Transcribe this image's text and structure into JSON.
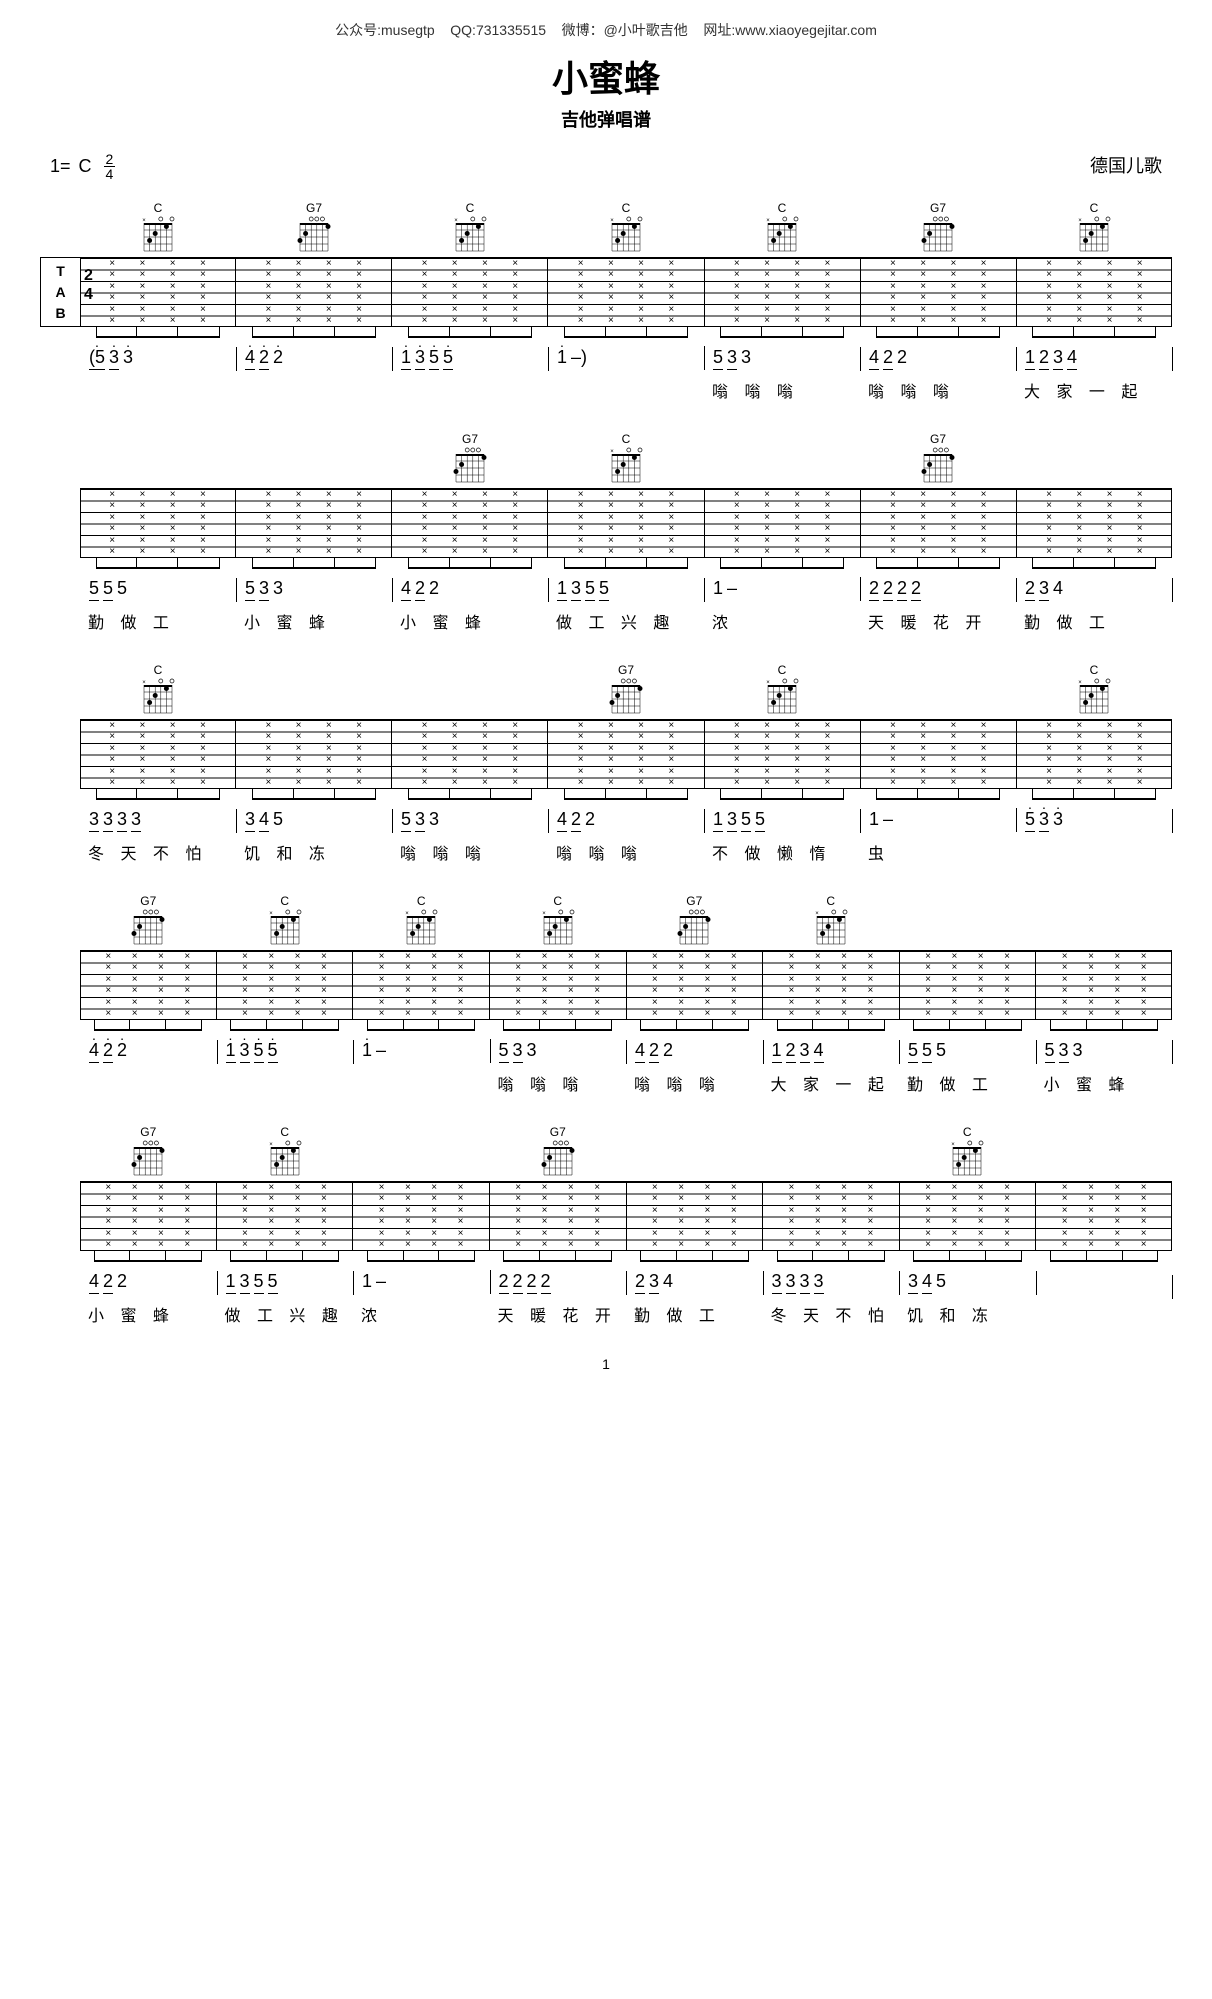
{
  "header": {
    "wechat_label": "公众号:",
    "wechat": "musegtp",
    "qq_label": "QQ:",
    "qq": "731335515",
    "weibo_label": "微博：",
    "weibo": "@小叶歌吉他",
    "site_label": "网址:",
    "site": "www.xiaoyegejitar.com"
  },
  "title": "小蜜蜂",
  "subtitle": "吉他弹唱谱",
  "key_prefix": "1=",
  "key": "C",
  "time_sig_num": "2",
  "time_sig_den": "4",
  "origin": "德国儿歌",
  "tab_clef": [
    "T",
    "A",
    "B"
  ],
  "chord_shapes": {
    "C": {
      "name": "C",
      "dots": [
        [
          1,
          0,
          "o"
        ],
        [
          2,
          1,
          "●"
        ],
        [
          3,
          0,
          "o"
        ],
        [
          4,
          2,
          "●"
        ],
        [
          5,
          3,
          "●"
        ]
      ],
      "mute": [
        6
      ]
    },
    "G7": {
      "name": "G7",
      "dots": [
        [
          1,
          1,
          "●"
        ],
        [
          2,
          0,
          "o"
        ],
        [
          3,
          0,
          "o"
        ],
        [
          4,
          0,
          "o"
        ],
        [
          5,
          2,
          "●"
        ],
        [
          6,
          3,
          "●"
        ]
      ],
      "mute": []
    }
  },
  "systems": [
    {
      "chords": [
        "C",
        "G7",
        "C",
        "C",
        "C",
        "G7",
        "C"
      ],
      "chord_widths": [
        1,
        1,
        1,
        1,
        1,
        1,
        1
      ],
      "bars": 7,
      "first_ts": true,
      "numbers": [
        {
          "notes": [
            "(5̇",
            "3̇",
            "3̇"
          ],
          "groups": [
            [
              0,
              1
            ]
          ]
        },
        {
          "notes": [
            "4̇",
            "2̇",
            "2̇"
          ],
          "groups": [
            [
              0,
              1
            ]
          ]
        },
        {
          "notes": [
            "1̇",
            "3̇",
            "5̇",
            "5̇"
          ],
          "groups": [
            [
              0,
              1
            ],
            [
              2,
              3
            ]
          ]
        },
        {
          "notes": [
            "1̇",
            "–)"
          ],
          "groups": []
        },
        {
          "notes": [
            "5",
            "3",
            "3"
          ],
          "groups": [
            [
              0,
              1
            ]
          ]
        },
        {
          "notes": [
            "4",
            "2",
            "2"
          ],
          "groups": [
            [
              0,
              1
            ]
          ]
        },
        {
          "notes": [
            "1",
            "2",
            "3",
            "4"
          ],
          "groups": [
            [
              0,
              1
            ],
            [
              2,
              3
            ]
          ]
        }
      ],
      "lyrics": [
        "",
        "",
        "",
        "",
        "嗡 嗡 嗡",
        "嗡 嗡 嗡",
        "大 家 一 起"
      ]
    },
    {
      "chords": [
        "",
        "",
        "G7",
        "C",
        "",
        "G7",
        ""
      ],
      "chord_widths": [
        1,
        1,
        1,
        1,
        1,
        1,
        1
      ],
      "bars": 7,
      "numbers": [
        {
          "notes": [
            "5",
            "5",
            "5"
          ],
          "groups": [
            [
              0,
              1
            ]
          ]
        },
        {
          "notes": [
            "5",
            "3",
            "3"
          ],
          "groups": [
            [
              0,
              1
            ]
          ]
        },
        {
          "notes": [
            "4",
            "2",
            "2"
          ],
          "groups": [
            [
              0,
              1
            ]
          ]
        },
        {
          "notes": [
            "1",
            "3",
            "5",
            "5"
          ],
          "groups": [
            [
              0,
              1
            ],
            [
              2,
              3
            ]
          ]
        },
        {
          "notes": [
            "1",
            "–"
          ],
          "groups": []
        },
        {
          "notes": [
            "2",
            "2",
            "2",
            "2"
          ],
          "groups": [
            [
              0,
              1
            ],
            [
              2,
              3
            ]
          ]
        },
        {
          "notes": [
            "2",
            "3",
            "4"
          ],
          "groups": [
            [
              0,
              1
            ]
          ]
        }
      ],
      "lyrics": [
        "勤 做 工",
        "小 蜜 蜂",
        "小 蜜 蜂",
        "做 工 兴 趣",
        "浓",
        "天 暖 花 开",
        "勤 做 工"
      ]
    },
    {
      "chords": [
        "C",
        "",
        "",
        "G7",
        "C",
        "",
        "C"
      ],
      "chord_widths": [
        1,
        1,
        1,
        1,
        1,
        1,
        1
      ],
      "bars": 7,
      "numbers": [
        {
          "notes": [
            "3",
            "3",
            "3",
            "3"
          ],
          "groups": [
            [
              0,
              1
            ],
            [
              2,
              3
            ]
          ]
        },
        {
          "notes": [
            "3",
            "4",
            "5"
          ],
          "groups": [
            [
              0,
              1
            ]
          ]
        },
        {
          "notes": [
            "5",
            "3",
            "3"
          ],
          "groups": [
            [
              0,
              1
            ]
          ]
        },
        {
          "notes": [
            "4",
            "2",
            "2"
          ],
          "groups": [
            [
              0,
              1
            ]
          ]
        },
        {
          "notes": [
            "1",
            "3",
            "5",
            "5"
          ],
          "groups": [
            [
              0,
              1
            ],
            [
              2,
              3
            ]
          ]
        },
        {
          "notes": [
            "1",
            "–"
          ],
          "groups": []
        },
        {
          "notes": [
            "5̇",
            "3̇",
            "3̇"
          ],
          "groups": [
            [
              0,
              1
            ]
          ]
        }
      ],
      "lyrics": [
        "冬 天 不 怕",
        "饥 和 冻",
        "嗡 嗡 嗡",
        "嗡 嗡 嗡",
        "不 做 懒 惰",
        "虫",
        ""
      ]
    },
    {
      "chords": [
        "G7",
        "C",
        "C",
        "C",
        "G7",
        "C",
        "",
        ""
      ],
      "chord_widths": [
        1,
        1,
        1,
        1,
        1,
        1,
        1,
        1
      ],
      "bars": 8,
      "numbers": [
        {
          "notes": [
            "4̇",
            "2̇",
            "2̇"
          ],
          "groups": [
            [
              0,
              1
            ]
          ]
        },
        {
          "notes": [
            "1̇",
            "3̇",
            "5̇",
            "5̇"
          ],
          "groups": [
            [
              0,
              1
            ],
            [
              2,
              3
            ]
          ]
        },
        {
          "notes": [
            "1̇",
            "–"
          ],
          "groups": []
        },
        {
          "notes": [
            "5",
            "3",
            "3"
          ],
          "groups": [
            [
              0,
              1
            ]
          ]
        },
        {
          "notes": [
            "4",
            "2",
            "2"
          ],
          "groups": [
            [
              0,
              1
            ]
          ]
        },
        {
          "notes": [
            "1",
            "2",
            "3",
            "4"
          ],
          "groups": [
            [
              0,
              1
            ],
            [
              2,
              3
            ]
          ]
        },
        {
          "notes": [
            "5",
            "5",
            "5"
          ],
          "groups": [
            [
              0,
              1
            ]
          ]
        },
        {
          "notes": [
            "5",
            "3",
            "3"
          ],
          "groups": [
            [
              0,
              1
            ]
          ]
        }
      ],
      "lyrics": [
        "",
        "",
        "",
        "嗡 嗡 嗡",
        "嗡 嗡 嗡",
        "大 家 一 起",
        "勤 做 工",
        "小 蜜 蜂"
      ]
    },
    {
      "chords": [
        "G7",
        "C",
        "",
        "G7",
        "",
        "",
        "C",
        ""
      ],
      "chord_widths": [
        1,
        1,
        1,
        1,
        1,
        1,
        1,
        1
      ],
      "bars": 8,
      "numbers": [
        {
          "notes": [
            "4",
            "2",
            "2"
          ],
          "groups": [
            [
              0,
              1
            ]
          ]
        },
        {
          "notes": [
            "1",
            "3",
            "5",
            "5"
          ],
          "groups": [
            [
              0,
              1
            ],
            [
              2,
              3
            ]
          ]
        },
        {
          "notes": [
            "1",
            "–"
          ],
          "groups": []
        },
        {
          "notes": [
            "2",
            "2",
            "2",
            "2"
          ],
          "groups": [
            [
              0,
              1
            ],
            [
              2,
              3
            ]
          ]
        },
        {
          "notes": [
            "2",
            "3",
            "4"
          ],
          "groups": [
            [
              0,
              1
            ]
          ]
        },
        {
          "notes": [
            "3",
            "3",
            "3",
            "3"
          ],
          "groups": [
            [
              0,
              1
            ],
            [
              2,
              3
            ]
          ]
        },
        {
          "notes": [
            "3",
            "4",
            "5"
          ],
          "groups": [
            [
              0,
              1
            ]
          ]
        },
        {
          "notes": []
        }
      ],
      "lyrics": [
        "小 蜜 蜂",
        "做 工 兴 趣",
        "浓",
        "天 暖 花 开",
        "勤 做 工",
        "冬 天 不 怕",
        "饥 和 冻",
        ""
      ]
    }
  ],
  "page_number": "1",
  "colors": {
    "text": "#000000",
    "bg": "#ffffff"
  }
}
